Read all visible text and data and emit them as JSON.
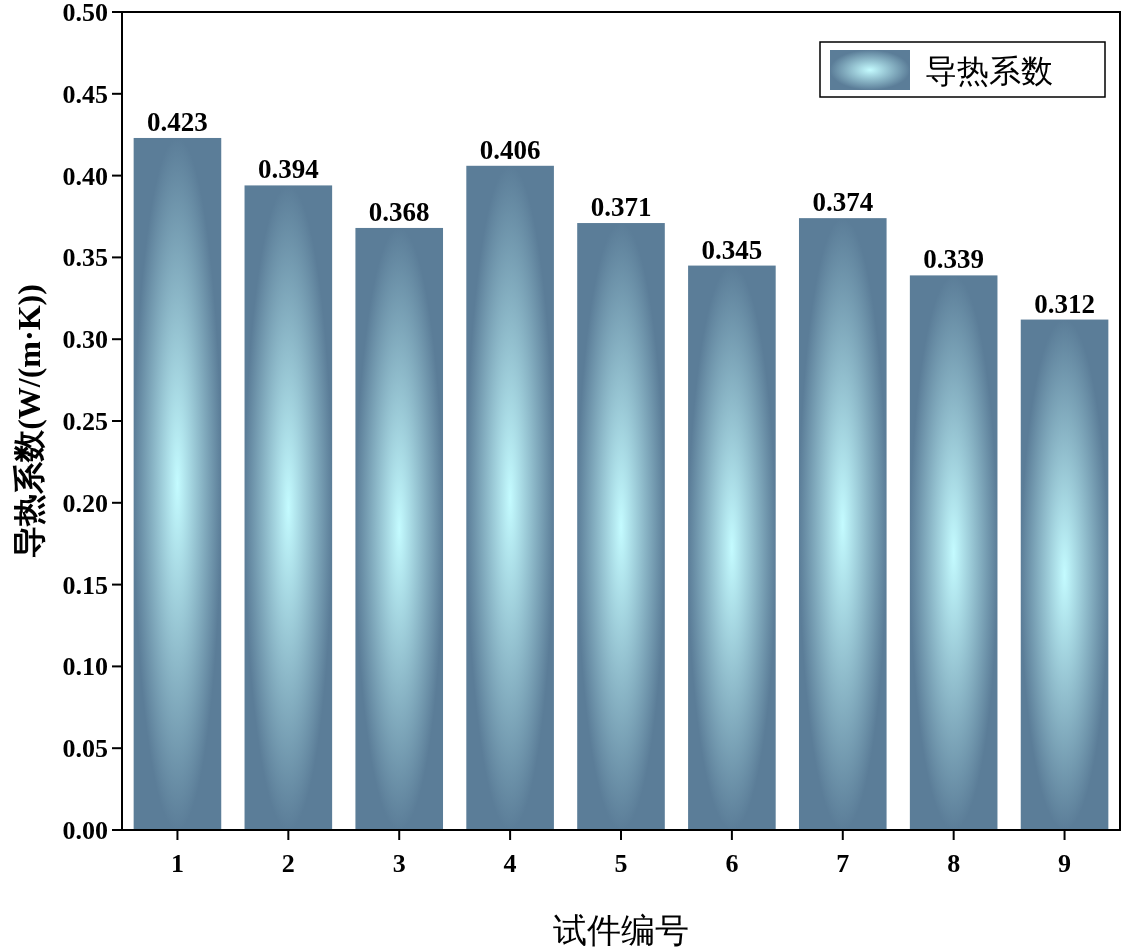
{
  "chart_data": {
    "type": "bar",
    "xlabel": "试件编号",
    "ylabel": "导热系数(W/(m·K))",
    "categories": [
      "1",
      "2",
      "3",
      "4",
      "5",
      "6",
      "7",
      "8",
      "9"
    ],
    "series": [
      {
        "name": "导热系数",
        "color": "#5b7d98",
        "values": [
          0.423,
          0.394,
          0.368,
          0.406,
          0.371,
          0.345,
          0.374,
          0.339,
          0.312
        ]
      }
    ],
    "ylim": [
      0,
      0.5
    ],
    "yticks": [
      {
        "value": 0,
        "label": "0.00"
      },
      {
        "value": 0.05,
        "label": "0.05"
      },
      {
        "value": 0.1,
        "label": "0.10"
      },
      {
        "value": 0.15,
        "label": "0.15"
      },
      {
        "value": 0.2,
        "label": "0.20"
      },
      {
        "value": 0.25,
        "label": "0.25"
      },
      {
        "value": 0.3,
        "label": "0.30"
      },
      {
        "value": 0.35,
        "label": "0.35"
      },
      {
        "value": 0.4,
        "label": "0.40"
      },
      {
        "value": 0.45,
        "label": "0.45"
      },
      {
        "value": 0.5,
        "label": "0.50"
      }
    ],
    "data_labels": true,
    "legend": "top right"
  }
}
